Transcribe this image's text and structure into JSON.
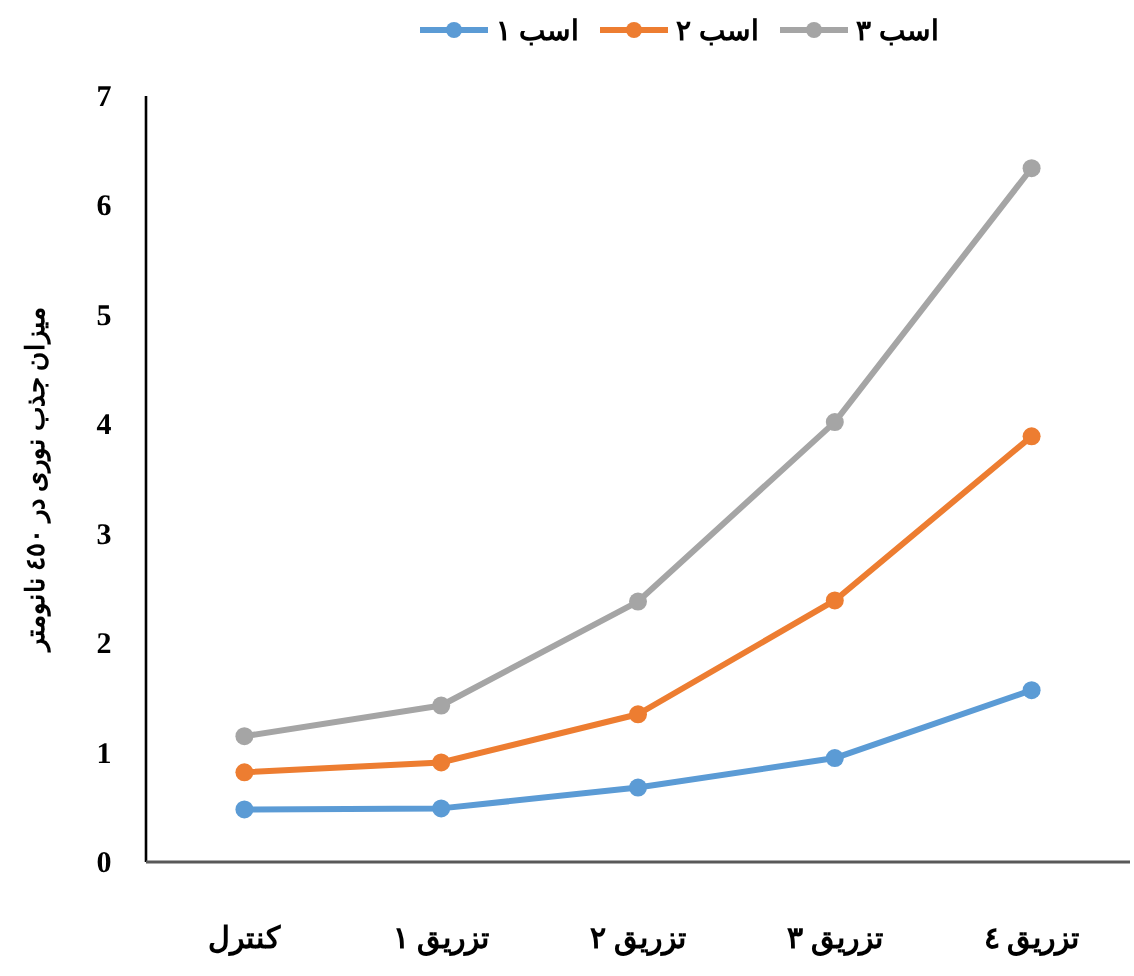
{
  "chart_data": {
    "type": "line",
    "ylabel": "میزان جذب نوری در ٤٥٠ نانومتر",
    "categories": [
      "کنترل",
      "تزریق ۱",
      "تزریق ۲",
      "تزریق ۳",
      "تزریق ٤"
    ],
    "series": [
      {
        "name": "اسب ۱",
        "color": "#5b9bd5",
        "values": [
          0.48,
          0.49,
          0.68,
          0.95,
          1.57
        ]
      },
      {
        "name": "اسب ۲",
        "color": "#ed7d31",
        "values": [
          0.82,
          0.91,
          1.35,
          2.39,
          3.89
        ]
      },
      {
        "name": "اسب ۳",
        "color": "#a5a5a5",
        "values": [
          1.15,
          1.43,
          2.38,
          4.02,
          6.34
        ]
      }
    ],
    "ylim": [
      0,
      7
    ],
    "yticks": [
      0,
      1,
      2,
      3,
      4,
      5,
      6,
      7
    ],
    "grid": false,
    "legend": "top",
    "marker": "circle",
    "line_style": "solid"
  }
}
